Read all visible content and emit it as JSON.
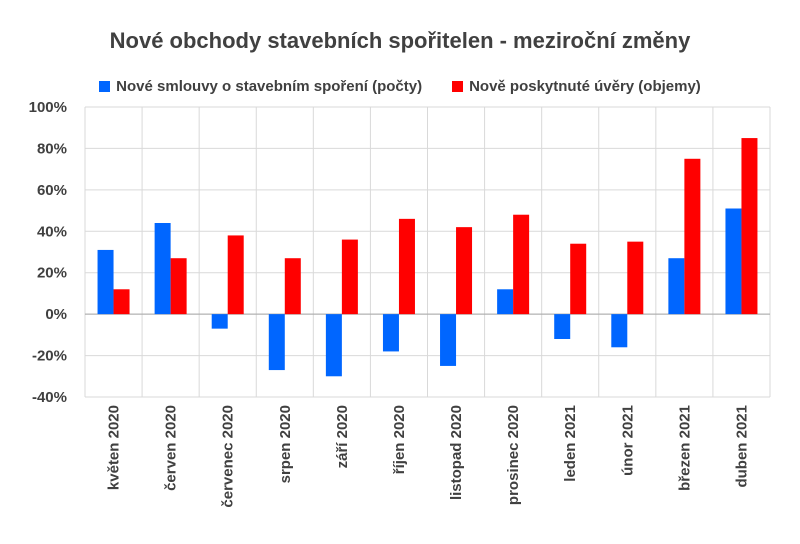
{
  "chart_data": {
    "type": "bar",
    "title": "Nové obchody stavebních spořitelen - meziroční změny",
    "categories": [
      "květen 2020",
      "červen 2020",
      "červenec 2020",
      "srpen 2020",
      "září 2020",
      "říjen 2020",
      "listopad 2020",
      "prosinec 2020",
      "leden 2021",
      "únor 2021",
      "březen 2021",
      "duben 2021"
    ],
    "series": [
      {
        "name": "Nové smlouvy o stavebním spoření (počty)",
        "color": "#0066ff",
        "values": [
          31,
          44,
          -7,
          -27,
          -30,
          -18,
          -25,
          12,
          -12,
          -16,
          27,
          51
        ]
      },
      {
        "name": "Nově poskytnuté úvěry (objemy)",
        "color": "#ff0000",
        "values": [
          12,
          27,
          38,
          27,
          36,
          46,
          42,
          48,
          34,
          35,
          75,
          85
        ]
      }
    ],
    "ylim": [
      -40,
      100
    ],
    "yticks": [
      "100%",
      "80%",
      "60%",
      "40%",
      "20%",
      "0%",
      "-20%",
      "-40%"
    ],
    "ytick_values": [
      100,
      80,
      60,
      40,
      20,
      0,
      -20,
      -40
    ],
    "xlabel": "",
    "ylabel": "",
    "grid": true,
    "legend": "top"
  }
}
